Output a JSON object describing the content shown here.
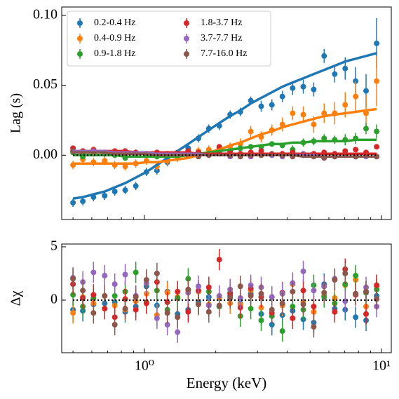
{
  "chart_data": [
    {
      "type": "errorbar",
      "ylabel": "Lag (s)",
      "xscale": "log",
      "xlim": [
        0.448,
        11.0
      ],
      "ylim": [
        -0.046,
        0.106
      ],
      "yticks": [
        {
          "value": 0.1,
          "label": "0.10"
        },
        {
          "value": 0.05,
          "label": "0.05"
        },
        {
          "value": 0,
          "label": "0.00"
        }
      ],
      "xticks": [
        1,
        10
      ],
      "xminor_ticks": [
        0.5,
        0.6,
        0.7,
        0.8,
        0.9,
        2,
        3,
        4,
        5,
        6,
        7,
        8,
        9
      ],
      "reference_line": 0,
      "legend": "upper left",
      "legend_columns": 2,
      "x": [
        0.5,
        0.55,
        0.61,
        0.68,
        0.75,
        0.83,
        0.92,
        1.02,
        1.13,
        1.25,
        1.38,
        1.53,
        1.69,
        1.87,
        2.07,
        2.3,
        2.54,
        2.81,
        3.11,
        3.45,
        3.82,
        4.22,
        4.68,
        5.18,
        5.73,
        6.35,
        7.03,
        7.78,
        8.61,
        9.54
      ],
      "series": [
        {
          "name": "0.2-0.4 Hz",
          "color": "#1f77b4",
          "values": [
            -0.034,
            -0.033,
            -0.03,
            -0.029,
            -0.026,
            -0.025,
            -0.022,
            -0.012,
            -0.011,
            -0.005,
            -0.001,
            0.005,
            0.012,
            0.019,
            0.021,
            0.029,
            0.031,
            0.039,
            0.035,
            0.036,
            0.042,
            0.048,
            0.049,
            0.047,
            0.071,
            0.058,
            0.062,
            0.053,
            0.046,
            0.08
          ],
          "errors": [
            0.003,
            0.003,
            0.003,
            0.003,
            0.003,
            0.003,
            0.003,
            0.003,
            0.003,
            0.003,
            0.003,
            0.003,
            0.003,
            0.003,
            0.003,
            0.003,
            0.003,
            0.003,
            0.004,
            0.004,
            0.004,
            0.005,
            0.005,
            0.005,
            0.005,
            0.006,
            0.008,
            0.01,
            0.012,
            0.018
          ],
          "model": [
            -0.031,
            -0.03,
            -0.028,
            -0.026,
            -0.023,
            -0.02,
            -0.016,
            -0.012,
            -0.007,
            -0.002,
            0.003,
            0.008,
            0.013,
            0.018,
            0.023,
            0.028,
            0.032,
            0.037,
            0.041,
            0.045,
            0.049,
            0.052,
            0.055,
            0.058,
            0.061,
            0.064,
            0.067,
            0.069,
            0.071,
            0.073
          ]
        },
        {
          "name": "0.4-0.9 Hz",
          "color": "#ff7f0e",
          "values": [
            -0.007,
            -0.003,
            -0.005,
            -0.004,
            -0.007,
            -0.008,
            -0.006,
            -0.004,
            -0.008,
            -0.004,
            -0.002,
            0.0,
            0.003,
            0.004,
            0.005,
            0.006,
            0.008,
            0.017,
            0.013,
            0.018,
            0.022,
            0.03,
            0.029,
            0.022,
            0.03,
            0.03,
            0.036,
            0.042,
            0.03,
            0.053
          ],
          "errors": [
            0.003,
            0.003,
            0.003,
            0.003,
            0.003,
            0.003,
            0.003,
            0.003,
            0.003,
            0.003,
            0.003,
            0.003,
            0.003,
            0.003,
            0.003,
            0.003,
            0.004,
            0.004,
            0.004,
            0.004,
            0.005,
            0.005,
            0.006,
            0.006,
            0.007,
            0.008,
            0.009,
            0.011,
            0.013,
            0.018
          ],
          "model": [
            -0.006,
            -0.006,
            -0.006,
            -0.006,
            -0.006,
            -0.006,
            -0.006,
            -0.005,
            -0.005,
            -0.004,
            -0.003,
            -0.002,
            0.0,
            0.002,
            0.004,
            0.007,
            0.009,
            0.012,
            0.015,
            0.017,
            0.02,
            0.022,
            0.024,
            0.026,
            0.028,
            0.029,
            0.03,
            0.031,
            0.032,
            0.033
          ]
        },
        {
          "name": "0.9-1.8 Hz",
          "color": "#2ca02c",
          "values": [
            0.002,
            -0.001,
            0.001,
            0.001,
            0.0,
            -0.002,
            0.002,
            0.0,
            -0.001,
            -0.002,
            0.0,
            0.001,
            0.002,
            0.001,
            0.002,
            0.003,
            0.005,
            0.006,
            0.006,
            0.008,
            0.007,
            0.004,
            0.009,
            0.01,
            0.012,
            0.011,
            0.011,
            0.012,
            0.019,
            0.017
          ],
          "errors": [
            0.002,
            0.002,
            0.002,
            0.002,
            0.002,
            0.002,
            0.002,
            0.002,
            0.002,
            0.002,
            0.002,
            0.002,
            0.002,
            0.002,
            0.002,
            0.002,
            0.002,
            0.002,
            0.002,
            0.002,
            0.002,
            0.003,
            0.003,
            0.003,
            0.003,
            0.003,
            0.004,
            0.004,
            0.004,
            0.005
          ],
          "model": [
            0.0,
            0.0,
            0.0,
            0.0,
            0.0,
            -0.001,
            -0.001,
            -0.001,
            -0.001,
            -0.001,
            -0.001,
            0.0,
            0.001,
            0.002,
            0.003,
            0.004,
            0.005,
            0.006,
            0.007,
            0.008,
            0.008,
            0.009,
            0.009,
            0.01,
            0.01,
            0.01,
            0.01,
            0.011,
            0.011,
            0.011
          ]
        },
        {
          "name": "1.8-3.7 Hz",
          "color": "#d62728",
          "values": [
            0.005,
            0.003,
            0.004,
            0.002,
            0.003,
            0.003,
            0.002,
            0.001,
            0.002,
            0.001,
            0.002,
            0.003,
            0.002,
            0.001,
            0.006,
            0.002,
            0.001,
            0.002,
            0.003,
            0.0,
            0.001,
            0.002,
            0.0,
            0.001,
            0.002,
            0.001,
            0.003,
            0.004,
            0.002,
            0.006
          ],
          "errors": [
            0.0015,
            0.0015,
            0.0015,
            0.0015,
            0.0015,
            0.0015,
            0.0015,
            0.0015,
            0.0015,
            0.0015,
            0.0015,
            0.0015,
            0.0015,
            0.0015,
            0.0015,
            0.0015,
            0.0015,
            0.0015,
            0.0015,
            0.0015,
            0.0015,
            0.0015,
            0.0015,
            0.0015,
            0.0015,
            0.0015,
            0.0015,
            0.0015,
            0.0015,
            0.0015
          ],
          "model": [
            0.003,
            0.003,
            0.003,
            0.003,
            0.003,
            0.003,
            0.002,
            0.002,
            0.002,
            0.002,
            0.002,
            0.002,
            0.001,
            0.001,
            0.001,
            0.001,
            0.001,
            0.001,
            0.001,
            0.001,
            0.001,
            0.001,
            0.001,
            0.001,
            0.001,
            0.001,
            0.001,
            0.001,
            0.001,
            0.001
          ]
        },
        {
          "name": "3.7-7.7 Hz",
          "color": "#9467bd",
          "values": [
            0.003,
            0.002,
            0.003,
            0.002,
            0.002,
            0.002,
            0.001,
            0.001,
            0.0,
            -0.001,
            0.001,
            0.0,
            0.0,
            0.0,
            0.001,
            -0.001,
            0.0,
            -0.001,
            0.0,
            0.0,
            -0.001,
            0.0,
            0.001,
            0.0,
            -0.001,
            -0.001,
            0.0,
            -0.001,
            -0.001,
            -0.001
          ],
          "errors": [
            0.0015,
            0.0015,
            0.0015,
            0.0015,
            0.0015,
            0.0015,
            0.0015,
            0.0015,
            0.0015,
            0.0015,
            0.0015,
            0.0015,
            0.0015,
            0.0015,
            0.0015,
            0.0015,
            0.0015,
            0.0015,
            0.0015,
            0.0015,
            0.0015,
            0.0015,
            0.0015,
            0.0015,
            0.0015,
            0.0015,
            0.0015,
            0.0015,
            0.0015,
            0.0015
          ],
          "model": [
            0.003,
            0.003,
            0.003,
            0.003,
            0.002,
            0.002,
            0.002,
            0.002,
            0.001,
            0.001,
            0.001,
            0.001,
            0.001,
            0.0,
            0.0,
            0.0,
            0.0,
            0.0,
            0.0,
            0.0,
            0.0,
            0.0,
            0.0,
            0.0,
            -0.001,
            -0.001,
            -0.001,
            -0.001,
            -0.001,
            -0.001
          ]
        },
        {
          "name": "7.7-16.0 Hz",
          "color": "#8c564b",
          "values": [
            0.003,
            0.002,
            0.002,
            0.001,
            0.001,
            0.0,
            0.001,
            0.001,
            0.0,
            0.0,
            0.001,
            0.0,
            -0.001,
            0.0,
            0.001,
            0.0,
            -0.001,
            0.0,
            0.0,
            0.001,
            0.0,
            -0.001,
            0.0,
            -0.001,
            -0.002,
            -0.001,
            0.0,
            -0.001,
            0.0,
            -0.001
          ],
          "errors": [
            0.0015,
            0.0015,
            0.0015,
            0.0015,
            0.0015,
            0.0015,
            0.0015,
            0.0015,
            0.0015,
            0.0015,
            0.0015,
            0.0015,
            0.0015,
            0.0015,
            0.0015,
            0.0015,
            0.0015,
            0.0015,
            0.0015,
            0.0015,
            0.0015,
            0.0015,
            0.0015,
            0.0015,
            0.0015,
            0.0015,
            0.0015,
            0.0015,
            0.0015,
            0.0015
          ],
          "model": [
            0.002,
            0.002,
            0.002,
            0.002,
            0.001,
            0.001,
            0.001,
            0.001,
            0.0,
            0.0,
            0.0,
            0.0,
            0.0,
            0.0,
            0.0,
            0.0,
            0.0,
            0.0,
            0.0,
            0.0,
            0.0,
            0.0,
            -0.001,
            -0.001,
            -0.001,
            -0.001,
            -0.001,
            -0.001,
            -0.001,
            -0.001
          ]
        }
      ]
    },
    {
      "type": "errorbar",
      "ylabel": "Δχ",
      "xlabel": "Energy (keV)",
      "xscale": "log",
      "xlim": [
        0.448,
        11.0
      ],
      "ylim": [
        -4.93,
        5.26
      ],
      "yticks": [
        5,
        0
      ],
      "xticks": [
        {
          "value": 1,
          "label": "10⁰"
        },
        {
          "value": 10,
          "label": "10¹"
        }
      ],
      "xminor_ticks": [
        0.5,
        0.6,
        0.7,
        0.8,
        0.9,
        2,
        3,
        4,
        5,
        6,
        7,
        8,
        9
      ],
      "reference_line": 0,
      "residual_error": 1,
      "x": [
        0.5,
        0.55,
        0.61,
        0.68,
        0.75,
        0.83,
        0.92,
        1.02,
        1.13,
        1.25,
        1.38,
        1.53,
        1.69,
        1.87,
        2.07,
        2.3,
        2.54,
        2.81,
        3.11,
        3.45,
        3.82,
        4.22,
        4.68,
        5.18,
        5.73,
        6.35,
        7.03,
        7.78,
        8.61,
        9.54
      ],
      "series": [
        {
          "color": "#1f77b4",
          "values": [
            -0.9,
            -1.0,
            -0.4,
            -0.3,
            -0.2,
            -1.1,
            -0.6,
            1.3,
            -0.5,
            0.8,
            -1.3,
            -0.9,
            -0.2,
            0.3,
            -0.6,
            0.4,
            -0.3,
            0.6,
            -1.3,
            -2.3,
            -1.4,
            -1.0,
            -1.8,
            -2.1,
            1.5,
            -0.8,
            -0.9,
            -1.6,
            -1.9,
            0.4
          ]
        },
        {
          "color": "#ff7f0e",
          "values": [
            -1.2,
            0.3,
            -0.3,
            0.4,
            -0.5,
            -0.9,
            -0.1,
            0.6,
            -1.4,
            0.7,
            0.3,
            0.9,
            0.8,
            -0.4,
            0.2,
            -0.3,
            -0.4,
            0.9,
            -0.7,
            0.3,
            -0.5,
            1.5,
            -0.2,
            -1.1,
            0.4,
            0.2,
            1.4,
            1.9,
            -0.6,
            1.3
          ]
        },
        {
          "color": "#2ca02c",
          "values": [
            0.5,
            -0.6,
            0.2,
            -0.8,
            0.4,
            0.8,
            2.6,
            -0.2,
            0.9,
            -0.9,
            0.2,
            2.0,
            -0.4,
            0.8,
            -0.6,
            0.7,
            -1.5,
            -0.8,
            -1.9,
            -1.5,
            -2.9,
            -0.6,
            -0.9,
            1.4,
            0.3,
            -0.3,
            1.5,
            2.3,
            0.7,
            1.0
          ]
        },
        {
          "color": "#d62728",
          "values": [
            1.5,
            0.2,
            0.5,
            -0.8,
            -1.6,
            0.1,
            -0.9,
            -0.3,
            1.7,
            -0.2,
            0.8,
            -1.1,
            0.9,
            1.2,
            3.8,
            0.6,
            -0.7,
            1.1,
            0.3,
            -1.2,
            0.7,
            -1.7,
            0.9,
            -0.6,
            1.3,
            -1.1,
            2.9,
            0.5,
            -1.3,
            1.4
          ]
        },
        {
          "color": "#9467bd",
          "values": [
            2.1,
            1.7,
            2.6,
            2.3,
            1.5,
            2.4,
            0.4,
            1.6,
            -1.7,
            -2.3,
            -3.0,
            0.7,
            1.3,
            -0.5,
            0.4,
            1.0,
            0.2,
            1.4,
            1.2,
            0.3,
            0.6,
            1.6,
            2.7,
            0.9,
            1.3,
            2.0,
            -0.1,
            0.6,
            1.2,
            -0.6
          ]
        },
        {
          "color": "#8c564b",
          "values": [
            2.0,
            0.9,
            -1.2,
            0.4,
            -2.3,
            -0.8,
            0.3,
            1.9,
            2.5,
            -1.2,
            -1.6,
            1.0,
            -0.4,
            -1.1,
            -0.5,
            0.2,
            1.3,
            0.4,
            0.6,
            -0.9,
            -0.3,
            0.8,
            -0.4,
            -2.5,
            0.7,
            1.9,
            2.5,
            0.6,
            0.8,
            0.1
          ]
        }
      ]
    }
  ]
}
